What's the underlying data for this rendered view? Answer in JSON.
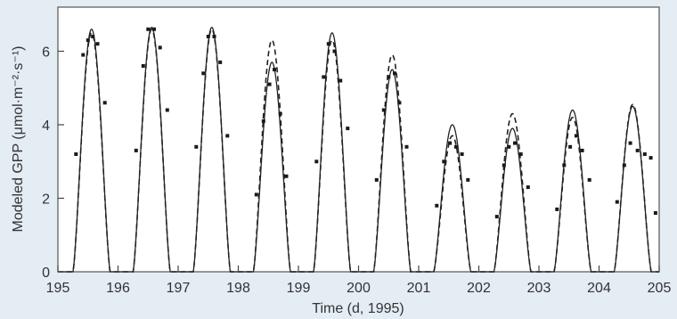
{
  "chart_data": {
    "type": "line",
    "title": "",
    "xlabel": "Time (d, 1995)",
    "ylabel": "Modeled GPP (μmol·m⁻²·s⁻¹)",
    "xlim": [
      195,
      205
    ],
    "ylim": [
      0,
      7.2
    ],
    "xticks": [
      195,
      196,
      197,
      198,
      199,
      200,
      201,
      202,
      203,
      204,
      205
    ],
    "yticks": [
      0,
      2,
      4,
      6
    ],
    "grid": false,
    "legend": "none",
    "peak_day_offset": 0.56,
    "series": [
      {
        "style": "solid",
        "x": [
          195.56,
          196.56,
          197.56,
          198.56,
          199.56,
          200.56,
          201.56,
          202.56,
          203.56,
          204.56
        ],
        "values": [
          6.6,
          6.65,
          6.65,
          5.7,
          6.5,
          5.5,
          4.0,
          3.9,
          4.4,
          4.5
        ]
      },
      {
        "style": "dashed",
        "x": [
          195.56,
          196.56,
          197.56,
          198.56,
          199.56,
          200.56,
          201.56,
          202.56,
          203.56,
          204.56
        ],
        "values": [
          6.5,
          6.6,
          6.6,
          6.3,
          6.3,
          5.9,
          3.7,
          4.3,
          4.2,
          4.55
        ]
      },
      {
        "style": "points",
        "x": [
          195.3,
          195.42,
          195.5,
          195.58,
          195.66,
          195.78,
          196.3,
          196.42,
          196.5,
          196.6,
          196.7,
          196.82,
          197.3,
          197.42,
          197.5,
          197.6,
          197.7,
          197.82,
          198.3,
          198.42,
          198.52,
          198.6,
          198.7,
          198.8,
          199.3,
          199.42,
          199.5,
          199.6,
          199.7,
          199.82,
          200.3,
          200.42,
          200.5,
          200.6,
          200.68,
          200.8,
          201.3,
          201.42,
          201.52,
          201.62,
          201.72,
          201.82,
          202.3,
          202.42,
          202.5,
          202.6,
          202.7,
          202.82,
          203.3,
          203.42,
          203.52,
          203.62,
          203.72,
          203.84,
          204.3,
          204.42,
          204.52,
          204.64,
          204.76,
          204.86,
          204.94
        ],
        "values": [
          3.2,
          5.9,
          6.3,
          6.4,
          6.2,
          4.6,
          3.3,
          5.6,
          6.6,
          6.6,
          6.1,
          4.4,
          3.4,
          5.4,
          6.4,
          6.4,
          5.7,
          3.7,
          2.1,
          4.1,
          5.1,
          5.5,
          4.3,
          2.6,
          3.0,
          5.3,
          6.2,
          6.0,
          5.2,
          3.9,
          2.5,
          4.4,
          5.3,
          5.4,
          4.6,
          3.4,
          1.8,
          3.0,
          3.5,
          3.4,
          3.2,
          2.5,
          1.5,
          2.9,
          3.4,
          3.5,
          3.2,
          2.3,
          1.7,
          2.9,
          3.4,
          3.7,
          3.3,
          2.5,
          1.9,
          2.9,
          3.5,
          3.3,
          3.2,
          3.1,
          1.6
        ]
      }
    ]
  }
}
